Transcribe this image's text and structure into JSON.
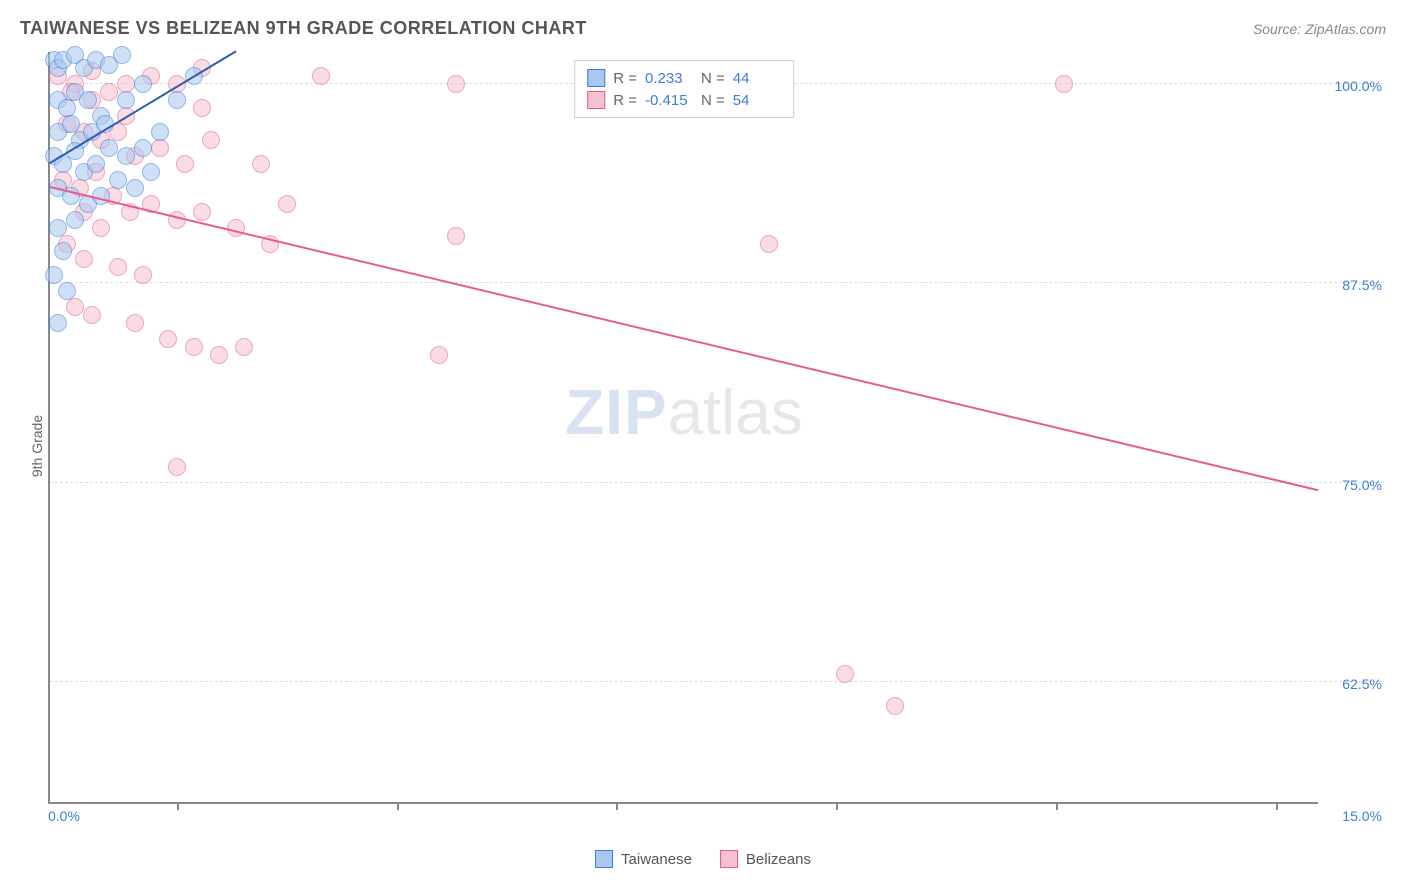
{
  "title": "TAIWANESE VS BELIZEAN 9TH GRADE CORRELATION CHART",
  "source": "Source: ZipAtlas.com",
  "ylabel": "9th Grade",
  "watermark": {
    "part1": "ZIP",
    "part2": "atlas"
  },
  "chart": {
    "type": "scatter",
    "background_color": "#ffffff",
    "grid_color": "#dddddd",
    "axis_color": "#888888",
    "value_color": "#3b7dd8",
    "label_color": "#666666",
    "title_fontsize": 18,
    "label_fontsize": 14,
    "tick_fontsize": 14,
    "xlim": [
      0.0,
      15.0
    ],
    "ylim": [
      55.0,
      102.0
    ],
    "xticks_pct": [
      0.0,
      15.0
    ],
    "xtick_labels": [
      "0.0%",
      "15.0%"
    ],
    "xtick_minor": [
      1.5,
      4.1,
      6.7,
      9.3,
      11.9,
      14.5
    ],
    "yticks_pct": [
      62.5,
      75.0,
      87.5,
      100.0
    ],
    "ytick_labels": [
      "62.5%",
      "75.0%",
      "87.5%",
      "100.0%"
    ],
    "marker_radius": 9,
    "marker_opacity": 0.55,
    "marker_stroke_width": 1.5,
    "line_width": 2
  },
  "series": [
    {
      "name": "Taiwanese",
      "fill": "#a8c8f0",
      "stroke": "#3b7dd8",
      "R": "0.233",
      "N": "44",
      "trend": {
        "x1": 0.0,
        "y1": 95.0,
        "x2": 2.2,
        "y2": 102.0,
        "color": "#2a5db0"
      },
      "points": [
        [
          0.05,
          101.5
        ],
        [
          0.1,
          101.0
        ],
        [
          0.15,
          101.5
        ],
        [
          0.3,
          101.8
        ],
        [
          0.4,
          101.0
        ],
        [
          0.55,
          101.5
        ],
        [
          0.7,
          101.2
        ],
        [
          0.85,
          101.8
        ],
        [
          0.1,
          99.0
        ],
        [
          0.2,
          98.5
        ],
        [
          0.3,
          99.5
        ],
        [
          0.45,
          99.0
        ],
        [
          0.6,
          98.0
        ],
        [
          0.1,
          97.0
        ],
        [
          0.25,
          97.5
        ],
        [
          0.35,
          96.5
        ],
        [
          0.5,
          97.0
        ],
        [
          0.65,
          97.5
        ],
        [
          0.05,
          95.5
        ],
        [
          0.15,
          95.0
        ],
        [
          0.3,
          95.8
        ],
        [
          0.4,
          94.5
        ],
        [
          0.55,
          95.0
        ],
        [
          0.7,
          96.0
        ],
        [
          0.9,
          95.5
        ],
        [
          1.1,
          96.0
        ],
        [
          1.3,
          97.0
        ],
        [
          1.5,
          99.0
        ],
        [
          1.7,
          100.5
        ],
        [
          0.1,
          93.5
        ],
        [
          0.25,
          93.0
        ],
        [
          0.45,
          92.5
        ],
        [
          0.1,
          91.0
        ],
        [
          0.3,
          91.5
        ],
        [
          0.15,
          89.5
        ],
        [
          0.05,
          88.0
        ],
        [
          0.2,
          87.0
        ],
        [
          0.1,
          85.0
        ],
        [
          0.6,
          93.0
        ],
        [
          0.8,
          94.0
        ],
        [
          1.0,
          93.5
        ],
        [
          1.2,
          94.5
        ],
        [
          0.9,
          99.0
        ],
        [
          1.1,
          100.0
        ]
      ]
    },
    {
      "name": "Belizeans",
      "fill": "#f5c0cf",
      "stroke": "#e75d87",
      "R": "-0.415",
      "N": "54",
      "trend": {
        "x1": 0.0,
        "y1": 93.5,
        "x2": 15.0,
        "y2": 74.5,
        "color": "#e75d87"
      },
      "points": [
        [
          0.1,
          100.5
        ],
        [
          0.3,
          100.0
        ],
        [
          0.5,
          100.8
        ],
        [
          0.7,
          99.5
        ],
        [
          0.9,
          100.0
        ],
        [
          1.2,
          100.5
        ],
        [
          1.5,
          100.0
        ],
        [
          1.8,
          101.0
        ],
        [
          3.2,
          100.5
        ],
        [
          4.8,
          100.0
        ],
        [
          12.0,
          100.0
        ],
        [
          0.2,
          97.5
        ],
        [
          0.4,
          97.0
        ],
        [
          0.6,
          96.5
        ],
        [
          0.8,
          97.0
        ],
        [
          1.0,
          95.5
        ],
        [
          1.3,
          96.0
        ],
        [
          1.6,
          95.0
        ],
        [
          1.9,
          96.5
        ],
        [
          2.5,
          95.0
        ],
        [
          0.15,
          94.0
        ],
        [
          0.35,
          93.5
        ],
        [
          0.55,
          94.5
        ],
        [
          0.75,
          93.0
        ],
        [
          0.95,
          92.0
        ],
        [
          1.2,
          92.5
        ],
        [
          1.5,
          91.5
        ],
        [
          1.8,
          92.0
        ],
        [
          2.2,
          91.0
        ],
        [
          2.6,
          90.0
        ],
        [
          4.8,
          90.5
        ],
        [
          0.2,
          90.0
        ],
        [
          0.4,
          89.0
        ],
        [
          0.8,
          88.5
        ],
        [
          1.1,
          88.0
        ],
        [
          8.5,
          90.0
        ],
        [
          0.3,
          86.0
        ],
        [
          0.5,
          85.5
        ],
        [
          1.0,
          85.0
        ],
        [
          1.4,
          84.0
        ],
        [
          1.7,
          83.5
        ],
        [
          2.0,
          83.0
        ],
        [
          2.3,
          83.5
        ],
        [
          4.6,
          83.0
        ],
        [
          1.5,
          76.0
        ],
        [
          0.4,
          92.0
        ],
        [
          0.6,
          91.0
        ],
        [
          2.8,
          92.5
        ],
        [
          9.4,
          63.0
        ],
        [
          10.0,
          61.0
        ],
        [
          1.8,
          98.5
        ],
        [
          0.9,
          98.0
        ],
        [
          0.5,
          99.0
        ],
        [
          0.25,
          99.5
        ]
      ]
    }
  ],
  "top_legend_labels": {
    "R": "R =",
    "N": "N ="
  },
  "bottom_legend": [
    {
      "label": "Taiwanese",
      "fill": "#a8c8f0",
      "stroke": "#3b7dd8"
    },
    {
      "label": "Belizeans",
      "fill": "#f5c0cf",
      "stroke": "#e75d87"
    }
  ]
}
